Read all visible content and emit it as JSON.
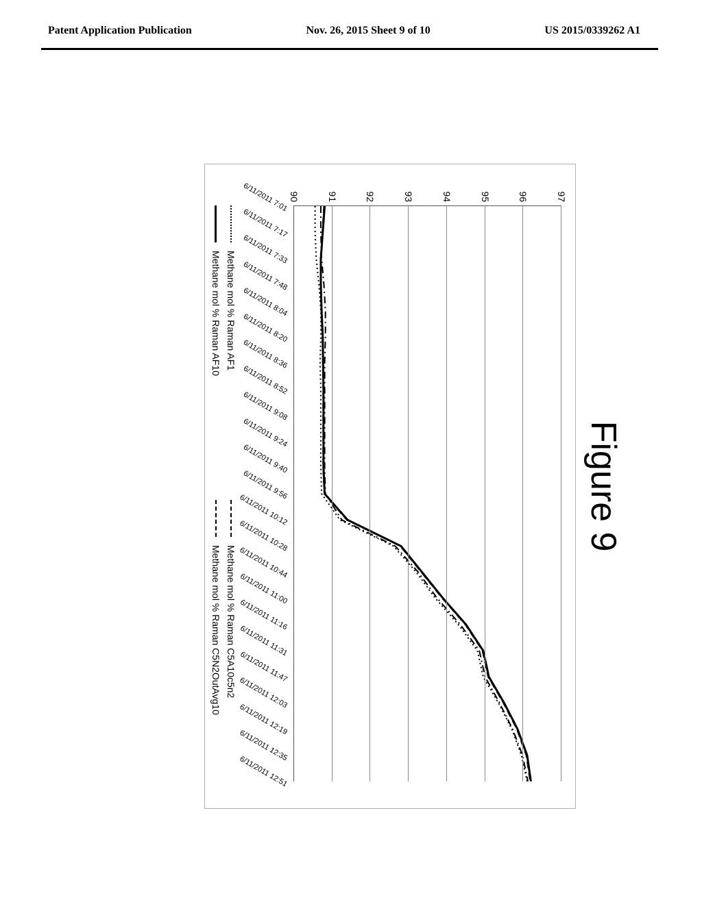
{
  "header": {
    "left": "Patent Application Publication",
    "mid": "Nov. 26, 2015  Sheet 9 of 10",
    "right": "US 2015/0339262 A1"
  },
  "figure": {
    "title": "Figure 9",
    "chart": {
      "type": "line",
      "background_color": "#ffffff",
      "border_color": "#b0b0b0",
      "grid_color": "#888888",
      "axis_color": "#555555",
      "ylim": [
        90,
        97
      ],
      "ytick_step": 1,
      "yticks": [
        90,
        91,
        92,
        93,
        94,
        95,
        96,
        97
      ],
      "ytick_fontsize": 14,
      "x_categories": [
        "6/11/2011 7:01",
        "6/11/2011 7:17",
        "6/11/2011 7:33",
        "6/11/2011 7:48",
        "6/11/2011 8:04",
        "6/11/2011 8:20",
        "6/11/2011 8:36",
        "6/11/2011 8:52",
        "6/11/2011 9:08",
        "6/11/2011 9:24",
        "6/11/2011 9:40",
        "6/11/2011 9:56",
        "6/11/2011 10:12",
        "6/11/2011 10:28",
        "6/11/2011 10:44",
        "6/11/2011 11:00",
        "6/11/2011 11:16",
        "6/11/2011 11:31",
        "6/11/2011 11:47",
        "6/11/2011 12:03",
        "6/11/2011 12:19",
        "6/11/2011 12:35",
        "6/11/2011 12:51"
      ],
      "xtick_fontsize": 11,
      "xtick_rotation_deg": -60,
      "series": [
        {
          "name": "Methane mol % Raman AF1",
          "color": "#000000",
          "line_width": 2,
          "dash": "dot",
          "values": [
            90.55,
            90.55,
            90.58,
            90.65,
            90.7,
            90.7,
            90.68,
            90.7,
            90.7,
            90.7,
            90.7,
            90.72,
            91.2,
            92.6,
            93.2,
            93.7,
            94.3,
            94.8,
            94.95,
            95.35,
            95.7,
            95.95,
            96.1
          ]
        },
        {
          "name": "Methane mol % Raman C5A10c5n2",
          "color": "#000000",
          "line_width": 2,
          "dash": "dashdot",
          "values": [
            90.7,
            90.7,
            90.72,
            90.78,
            90.82,
            90.82,
            90.8,
            90.8,
            90.8,
            90.8,
            90.8,
            90.82,
            91.25,
            92.65,
            93.25,
            93.75,
            94.35,
            94.85,
            95.0,
            95.38,
            95.72,
            95.98,
            96.12
          ]
        },
        {
          "name": "Methane mol % Raman AF10",
          "color": "#000000",
          "line_width": 3,
          "dash": "solid",
          "values": [
            90.8,
            90.75,
            90.7,
            90.7,
            90.72,
            90.75,
            90.76,
            90.77,
            90.77,
            90.77,
            90.77,
            90.8,
            91.4,
            92.8,
            93.35,
            93.9,
            94.5,
            94.95,
            95.1,
            95.5,
            95.85,
            96.1,
            96.2
          ]
        },
        {
          "name": "Methane mol % Raman C5N2OutAvg10",
          "color": "#000000",
          "line_width": 2,
          "dash": "dash",
          "values": [
            90.78,
            90.74,
            90.7,
            90.7,
            90.71,
            90.74,
            90.75,
            90.76,
            90.76,
            90.76,
            90.76,
            90.79,
            91.38,
            92.78,
            93.33,
            93.88,
            94.48,
            94.93,
            95.08,
            95.48,
            95.83,
            96.08,
            96.18
          ]
        }
      ],
      "legend": {
        "items": [
          {
            "swatch_dash": "dot",
            "label": "Methane mol % Raman AF1"
          },
          {
            "swatch_dash": "dashdot",
            "label": "Methane mol % Raman C5A10c5n2"
          },
          {
            "swatch_dash": "solid",
            "label": "Methane mol % Raman AF10"
          },
          {
            "swatch_dash": "dash",
            "label": "Methane mol % Raman C5N2OutAvg10"
          }
        ],
        "fontsize": 14
      }
    }
  }
}
